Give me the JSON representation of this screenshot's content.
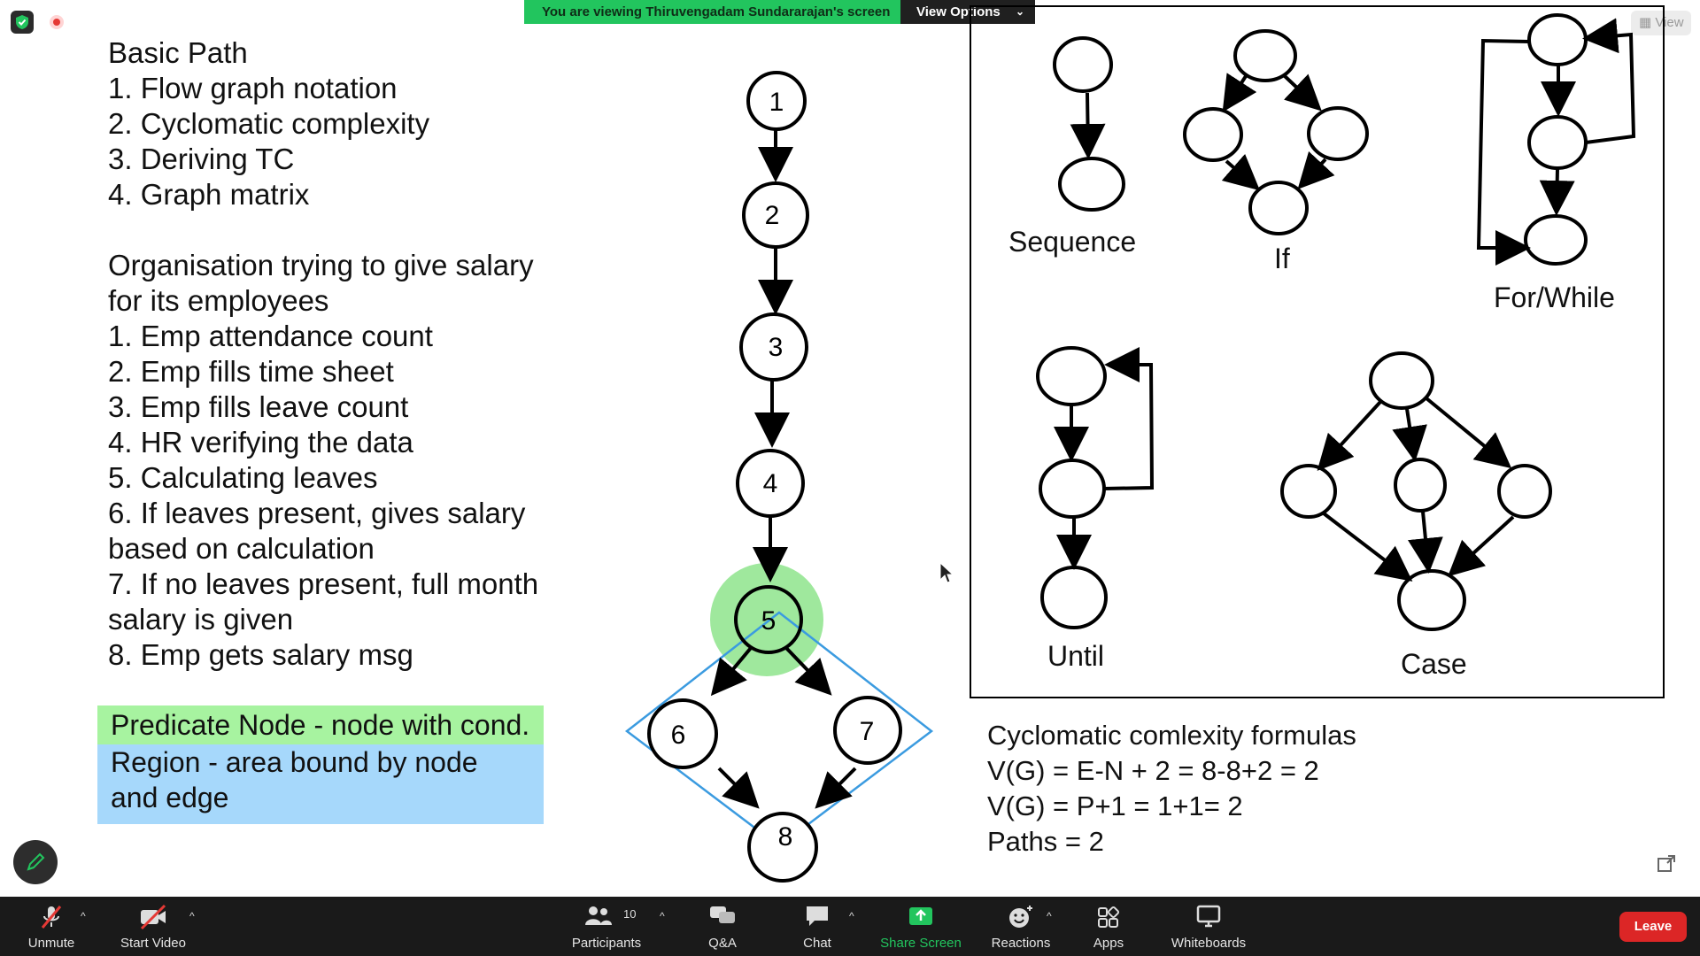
{
  "banner": {
    "viewing_text": "You are viewing Thiruvengadam Sundararajan's screen",
    "view_options_label": "View Options"
  },
  "top_right": {
    "view_label": "View"
  },
  "slide": {
    "left_text": [
      "Basic Path",
      "1. Flow graph notation",
      "2. Cyclomatic complexity",
      "3. Deriving TC",
      "4. Graph matrix",
      "",
      "Organisation trying to give salary",
      "for its employees",
      "1. Emp attendance count",
      "2. Emp fills time sheet",
      "3. Emp fills leave count",
      "4. HR verifying the data",
      "5. Calculating leaves",
      "6. If leaves present, gives salary",
      "based on calculation",
      "7. If no leaves present, full month",
      "salary is given",
      "8. Emp gets salary msg"
    ],
    "legend": {
      "predicate": "Predicate Node - node with cond.",
      "region_line1": "Region - area bound by node",
      "region_line2": "and edge"
    },
    "flow_nodes": [
      "1",
      "2",
      "3",
      "4",
      "5",
      "6",
      "7",
      "8"
    ],
    "notation_labels": {
      "sequence": "Sequence",
      "if": "If",
      "for_while": "For/While",
      "until": "Until",
      "case": "Case"
    },
    "formulas": {
      "title": "Cyclomatic comlexity formulas",
      "line1": "V(G) = E-N + 2 = 8-8+2 = 2",
      "line2": "V(G) = P+1 = 1+1= 2",
      "line3": "Paths = 2"
    }
  },
  "toolbar": {
    "unmute": "Unmute",
    "start_video": "Start Video",
    "participants": "Participants",
    "participants_count": "10",
    "qa": "Q&A",
    "chat": "Chat",
    "share_screen": "Share Screen",
    "reactions": "Reactions",
    "apps": "Apps",
    "whiteboards": "Whiteboards",
    "leave": "Leave"
  },
  "colors": {
    "banner_green": "#22c55e",
    "share_green": "#22c55e",
    "leave_red": "#dc2626",
    "predicate_highlight": "#a7f3a0",
    "region_highlight": "#a6d8fb",
    "region_outline": "#3b9be0"
  }
}
